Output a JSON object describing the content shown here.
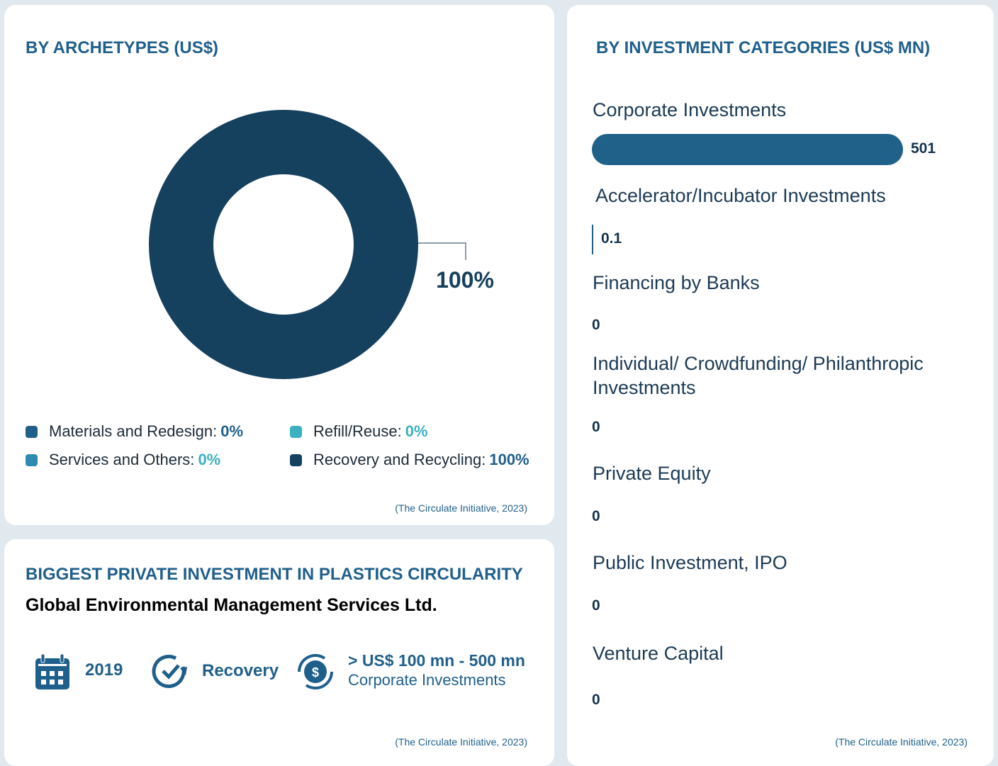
{
  "chart_data": [
    {
      "type": "pie",
      "title": "BY ARCHETYPES (US$)",
      "categories": [
        "Materials and Redesign:",
        "Refill/Reuse:",
        "Services and Others:",
        "Recovery and Recycling:"
      ],
      "values": [
        0,
        0,
        0,
        100
      ],
      "value_labels": [
        "0%",
        "0%",
        "0%",
        "100%"
      ],
      "colors": [
        "#1f5f8b",
        "#3bb0c0",
        "#2e8ab0",
        "#15405e"
      ],
      "source": "(The Circulate Initiative, 2023)"
    },
    {
      "type": "hbar",
      "title": "BY INVESTMENT CATEGORIES (US$ MN)",
      "categories": [
        "Corporate Investments",
        "Accelerator/Incubator Investments",
        "Financing by Banks",
        "Individual/ Crowdfunding/ Philanthropic Investments",
        "Private Equity",
        "Public Investment, IPO",
        "Venture Capital"
      ],
      "values": [
        501,
        0.1,
        0,
        0,
        0,
        0,
        0
      ],
      "color": "#1f6189",
      "source": "(The Circulate Initiative, 2023)"
    }
  ],
  "biggest": {
    "title": "BIGGEST PRIVATE INVESTMENT IN PLASTICS CIRCULARITY",
    "company": "Global Environmental Management Services Ltd.",
    "year": "2019",
    "archetype": "Recovery",
    "amount": "> US$ 100 mn - 500 mn",
    "category": "Corporate Investments",
    "source": "(The Circulate Initiative, 2023)"
  }
}
